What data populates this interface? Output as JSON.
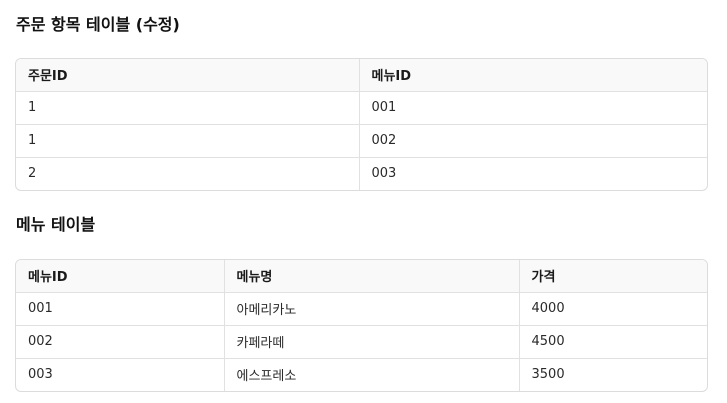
{
  "order_items": {
    "title": "주문 항목 테이블 (수정)",
    "columns": [
      "주문ID",
      "메뉴ID"
    ],
    "rows": [
      [
        "1",
        "001"
      ],
      [
        "1",
        "002"
      ],
      [
        "2",
        "003"
      ]
    ]
  },
  "menu": {
    "title": "메뉴 테이블",
    "columns": [
      "메뉴ID",
      "메뉴명",
      "가격"
    ],
    "rows": [
      [
        "001",
        "아메리카노",
        "4000"
      ],
      [
        "002",
        "카페라떼",
        "4500"
      ],
      [
        "003",
        "에스프레소",
        "3500"
      ]
    ]
  }
}
